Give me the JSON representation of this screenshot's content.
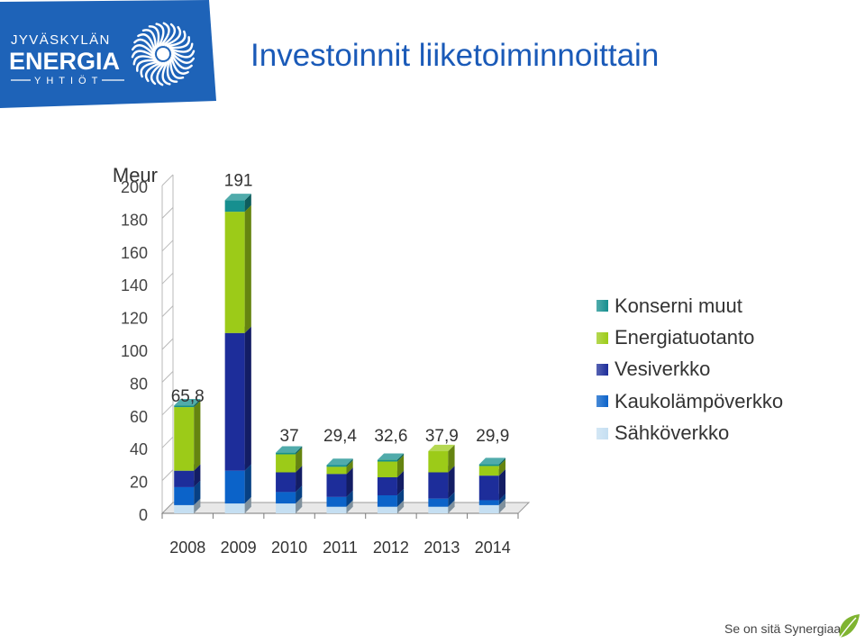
{
  "brand": {
    "line1": "JYVÄSKYLÄN",
    "line2": "ENERGIA",
    "line3": "YHTIÖT",
    "panel_color": "#1e63b8"
  },
  "slide": {
    "title": "Investoinnit liiketoiminnoittain",
    "footer": "Se on sitä Synergiaa.",
    "title_color": "#1a5ab8"
  },
  "chart_data": {
    "type": "bar",
    "stacked": true,
    "three_d": true,
    "unit_label": "Meur",
    "categories": [
      "2008",
      "2009",
      "2010",
      "2011",
      "2012",
      "2013",
      "2014"
    ],
    "ylim": [
      0,
      200
    ],
    "yticks": [
      0,
      20,
      40,
      60,
      80,
      100,
      120,
      140,
      160,
      180,
      200
    ],
    "totals": [
      "65,8",
      "191",
      "37",
      "29,4",
      "32,6",
      "37,9",
      "29,9"
    ],
    "legend_position": "right",
    "series": [
      {
        "name": "Sähköverkko",
        "color": "#c5dff2",
        "values": [
          5,
          6,
          6,
          4,
          4,
          4,
          5
        ]
      },
      {
        "name": "Kaukolämpöverkko",
        "color": "#0b63c9",
        "values": [
          11,
          20,
          7,
          6,
          7,
          5,
          3
        ]
      },
      {
        "name": "Vesiverkko",
        "color": "#1d2d9a",
        "values": [
          10,
          84,
          12,
          14,
          11,
          16,
          15
        ]
      },
      {
        "name": "Energiatuotanto",
        "color": "#9ccb18",
        "values": [
          38.8,
          74,
          11,
          4.4,
          9.6,
          12.9,
          5.9
        ]
      },
      {
        "name": "Konserni muut",
        "color": "#168f8f",
        "values": [
          1,
          7,
          1,
          1,
          1,
          0,
          1
        ]
      }
    ],
    "legend_order": [
      "Konserni muut",
      "Energiatuotanto",
      "Vesiverkko",
      "Kaukolämpöverkko",
      "Sähköverkko"
    ]
  }
}
